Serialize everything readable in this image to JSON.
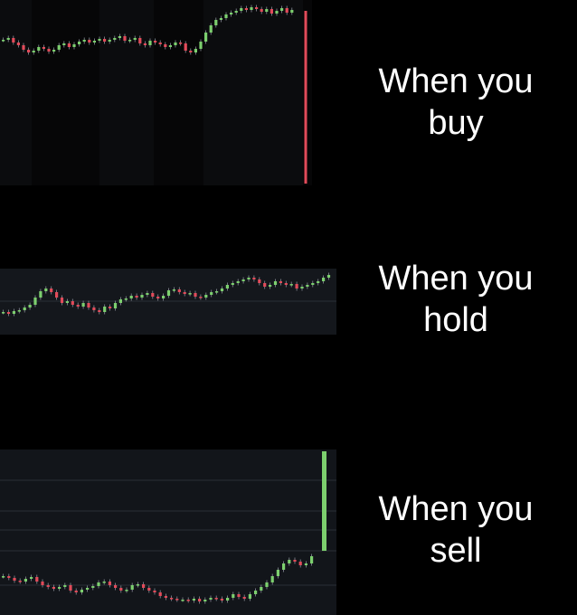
{
  "colors": {
    "background": "#000000",
    "up_candle": "#7ccf6e",
    "down_candle": "#e14b5a",
    "wick": "#8a8f99",
    "buy_panel": "#060607",
    "hold_panel": "#14171c",
    "sell_panel": "#12151a",
    "grid_line": "#2a2f36",
    "caption": "#ffffff"
  },
  "panels": [
    {
      "name": "buy",
      "caption_line1": "When you",
      "caption_line2": "buy",
      "trend": "flat then spike up, ending in a sharp vertical red drop"
    },
    {
      "name": "hold",
      "caption_line1": "When you",
      "caption_line2": "hold",
      "trend": "slow gradual climb"
    },
    {
      "name": "sell",
      "caption_line1": "When you",
      "caption_line2": "sell",
      "trend": "flat/dip then sharp rise ending in a tall vertical green candle"
    }
  ]
}
